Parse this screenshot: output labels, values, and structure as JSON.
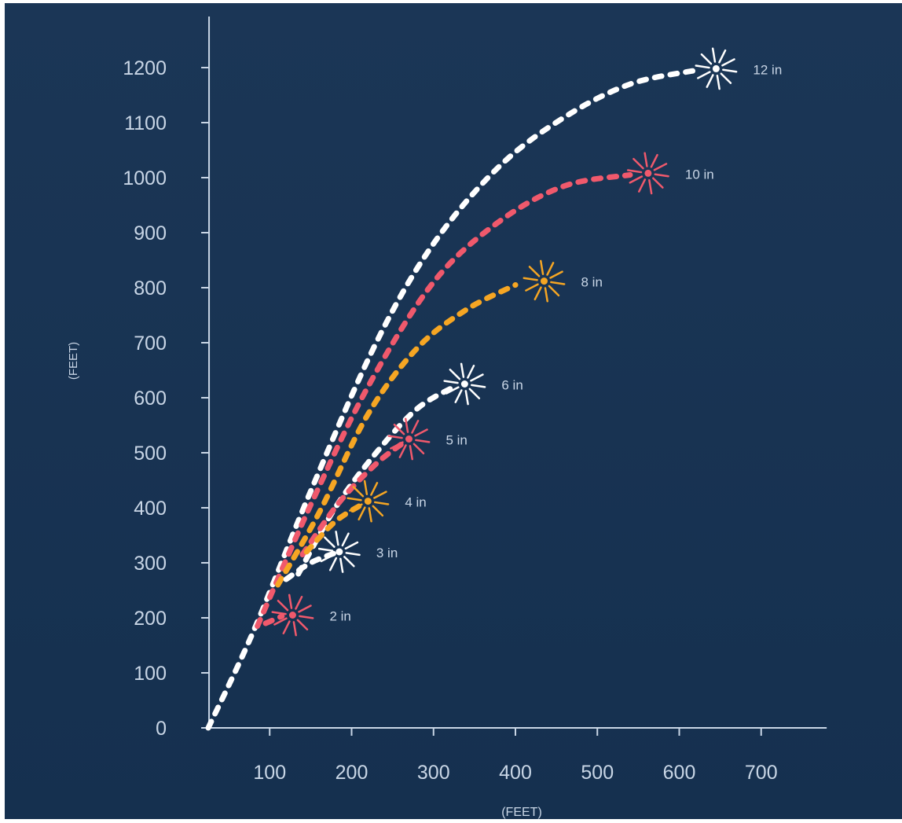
{
  "colors": {
    "background_top": "#1b3656",
    "background_bottom": "#15304f",
    "axis": "#c9d6e6",
    "text": "#c9d6e6",
    "white": "#ffffff",
    "red": "#f0596c",
    "orange": "#f6a623"
  },
  "chart_data": {
    "type": "line",
    "xlabel": "(FEET)",
    "ylabel": "(FEET)",
    "xlim": [
      25,
      780
    ],
    "ylim": [
      0,
      1250
    ],
    "x_ticks": [
      100,
      200,
      300,
      400,
      500,
      600,
      700
    ],
    "y_ticks": [
      0,
      100,
      200,
      300,
      400,
      500,
      600,
      700,
      800,
      900,
      1000,
      1100,
      1200
    ],
    "grid": false,
    "series": [
      {
        "name": "12 in",
        "color": "white",
        "points": [
          [
            25,
            0
          ],
          [
            80,
            175
          ],
          [
            150,
            430
          ],
          [
            230,
            700
          ],
          [
            300,
            880
          ],
          [
            380,
            1020
          ],
          [
            460,
            1110
          ],
          [
            540,
            1170
          ],
          [
            620,
            1195
          ]
        ],
        "burst": [
          645,
          1198
        ]
      },
      {
        "name": "10 in",
        "color": "red",
        "points": [
          [
            85,
            185
          ],
          [
            150,
            405
          ],
          [
            220,
            620
          ],
          [
            300,
            810
          ],
          [
            380,
            920
          ],
          [
            460,
            985
          ],
          [
            540,
            1005
          ]
        ],
        "burst": [
          562,
          1008
        ]
      },
      {
        "name": "8 in",
        "color": "orange",
        "points": [
          [
            110,
            260
          ],
          [
            160,
            390
          ],
          [
            220,
            570
          ],
          [
            280,
            690
          ],
          [
            340,
            760
          ],
          [
            400,
            805
          ]
        ],
        "burst": [
          435,
          812
        ]
      },
      {
        "name": "6 in",
        "color": "white",
        "points": [
          [
            135,
            280
          ],
          [
            180,
            400
          ],
          [
            230,
            500
          ],
          [
            280,
            580
          ],
          [
            325,
            620
          ]
        ],
        "burst": [
          338,
          625
        ]
      },
      {
        "name": "5 in",
        "color": "red",
        "points": [
          [
            140,
            315
          ],
          [
            185,
            410
          ],
          [
            230,
            480
          ],
          [
            265,
            520
          ]
        ],
        "burst": [
          270,
          525
        ]
      },
      {
        "name": "4 in",
        "color": "orange",
        "points": [
          [
            145,
            320
          ],
          [
            180,
            375
          ],
          [
            215,
            408
          ]
        ],
        "burst": [
          220,
          412
        ]
      },
      {
        "name": "3 in",
        "color": "white",
        "points": [
          [
            120,
            270
          ],
          [
            150,
            300
          ],
          [
            180,
            318
          ]
        ],
        "burst": [
          185,
          320
        ]
      },
      {
        "name": "2 in",
        "color": "red",
        "points": [
          [
            95,
            190
          ],
          [
            115,
            203
          ]
        ],
        "burst": [
          128,
          205
        ]
      }
    ]
  }
}
